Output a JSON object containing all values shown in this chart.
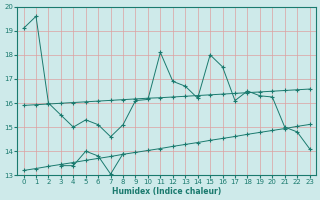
{
  "x": [
    0,
    1,
    2,
    3,
    4,
    5,
    6,
    7,
    8,
    9,
    10,
    11,
    12,
    13,
    14,
    15,
    16,
    17,
    18,
    19,
    20,
    21,
    22,
    23
  ],
  "line_main": [
    19.1,
    19.6,
    16.0,
    15.5,
    15.0,
    15.3,
    15.1,
    14.6,
    15.1,
    16.1,
    16.15,
    18.1,
    16.9,
    16.7,
    16.2,
    18.0,
    17.5,
    16.1,
    16.5,
    16.3,
    16.25,
    15.0,
    14.8,
    14.1
  ],
  "line_reg_upper": [
    15.9,
    15.93,
    15.96,
    15.99,
    16.02,
    16.05,
    16.08,
    16.11,
    16.14,
    16.17,
    16.2,
    16.22,
    16.25,
    16.28,
    16.31,
    16.34,
    16.37,
    16.4,
    16.43,
    16.46,
    16.49,
    16.52,
    16.55,
    16.58
  ],
  "line_reg_lower": [
    13.2,
    13.28,
    13.37,
    13.45,
    13.53,
    13.62,
    13.7,
    13.78,
    13.87,
    13.95,
    14.03,
    14.11,
    14.2,
    14.28,
    14.36,
    14.45,
    14.53,
    14.61,
    14.7,
    14.78,
    14.86,
    14.94,
    15.03,
    15.11
  ],
  "line_lower_jagged": [
    null,
    null,
    null,
    13.4,
    13.4,
    14.0,
    13.8,
    13.05,
    13.9,
    null,
    null,
    null,
    null,
    null,
    null,
    null,
    null,
    null,
    null,
    null,
    null,
    null,
    null,
    null
  ],
  "xlim": [
    -0.5,
    23.5
  ],
  "ylim": [
    13.0,
    20.0
  ],
  "yticks": [
    13,
    14,
    15,
    16,
    17,
    18,
    19,
    20
  ],
  "xticks": [
    0,
    1,
    2,
    3,
    4,
    5,
    6,
    7,
    8,
    9,
    10,
    11,
    12,
    13,
    14,
    15,
    16,
    17,
    18,
    19,
    20,
    21,
    22,
    23
  ],
  "xlabel": "Humidex (Indice chaleur)",
  "bg_color": "#ceeaea",
  "line_color": "#1a7a6e",
  "grid_color": "#dda0a0",
  "figsize": [
    3.2,
    2.0
  ],
  "dpi": 100
}
